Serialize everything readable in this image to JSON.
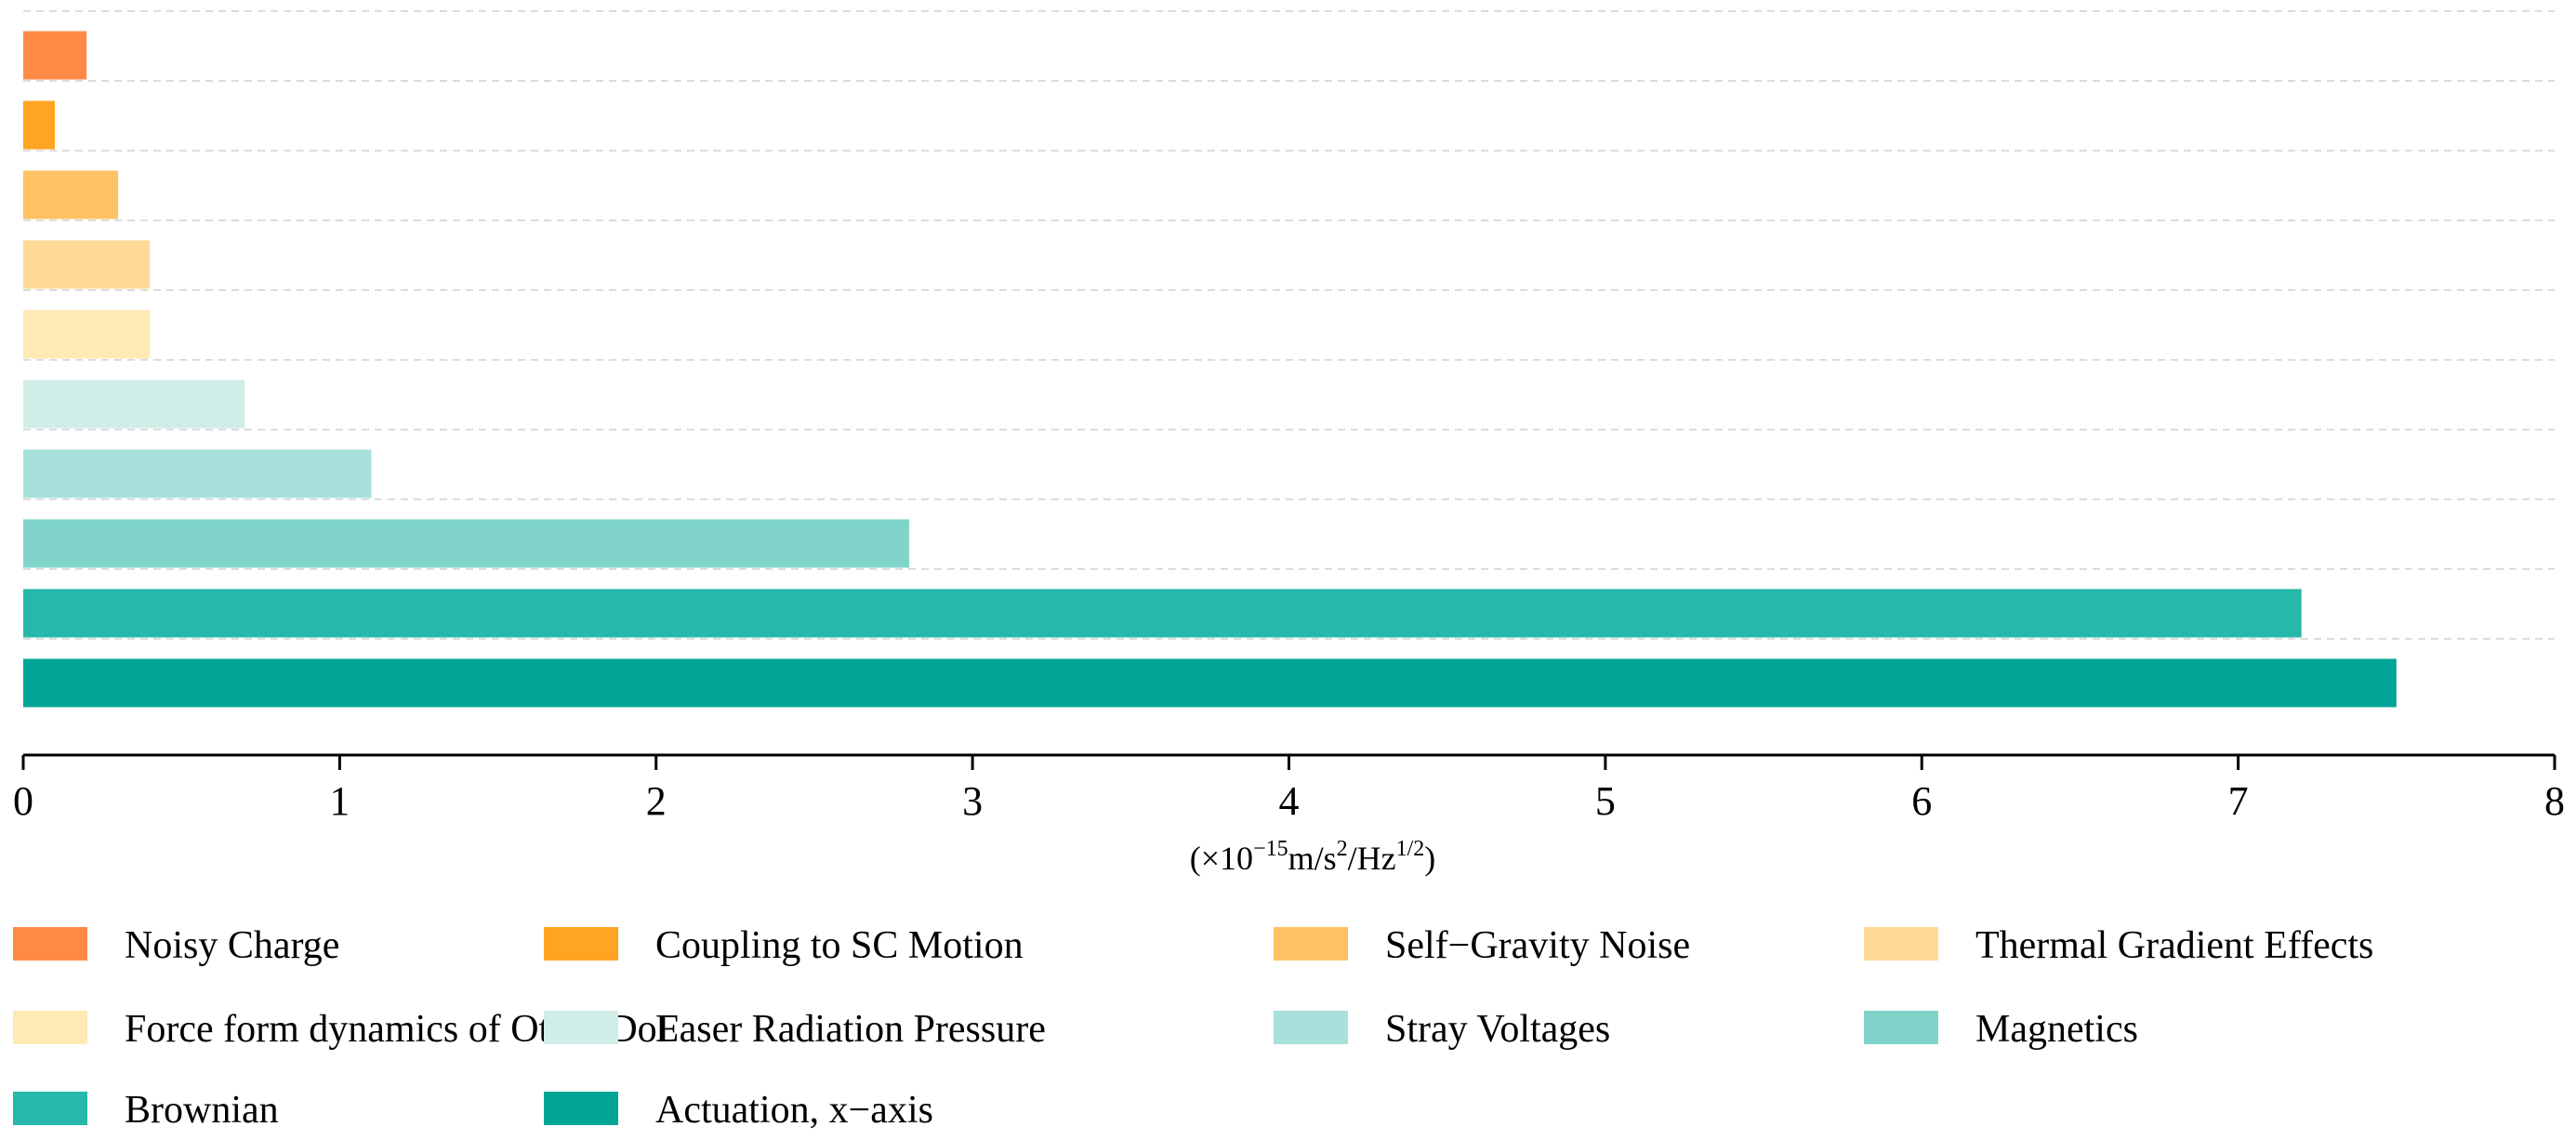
{
  "chart_data": {
    "type": "bar",
    "orientation": "horizontal",
    "xlabel": {
      "base": "(×10",
      "exp1": "−15",
      "mid": "m/s",
      "exp2": "2",
      "mid2": "/Hz",
      "exp3": "1/2",
      "end": ")"
    },
    "xlim": [
      0,
      8
    ],
    "xticks": [
      "0",
      "1",
      "2",
      "3",
      "4",
      "5",
      "6",
      "7",
      "8"
    ],
    "grid": "horizontal dashed",
    "legend_position": "bottom",
    "series": [
      {
        "name": "Noisy Charge",
        "value": 0.2,
        "color": "#FF8A45"
      },
      {
        "name": "Coupling to SC Motion",
        "value": 0.1,
        "color": "#FFA522"
      },
      {
        "name": "Self−Gravity Noise",
        "value": 0.3,
        "color": "#FFC264"
      },
      {
        "name": "Thermal Gradient Effects",
        "value": 0.4,
        "color": "#FFD996"
      },
      {
        "name": "Force form dynamics of Other DoF",
        "value": 0.4,
        "color": "#FFEAB4"
      },
      {
        "name": "Laser Radiation Pressure",
        "value": 0.7,
        "color": "#D0EDE8"
      },
      {
        "name": "Stray Voltages",
        "value": 1.1,
        "color": "#A8E0DB"
      },
      {
        "name": "Magnetics",
        "value": 2.8,
        "color": "#80D4CA"
      },
      {
        "name": "Brownian",
        "value": 7.2,
        "color": "#26B8AA"
      },
      {
        "name": "Actuation, x−axis",
        "value": 7.5,
        "color": "#00A597"
      }
    ]
  }
}
